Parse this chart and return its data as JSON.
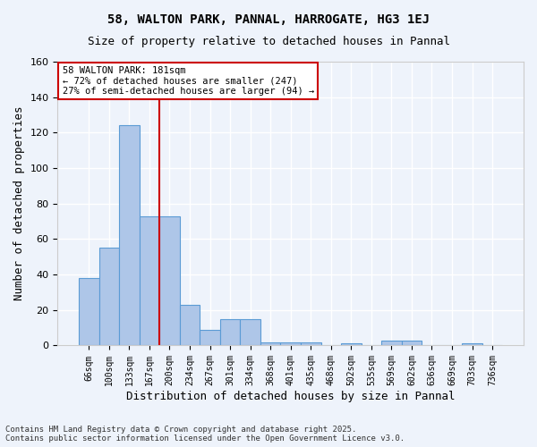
{
  "title1": "58, WALTON PARK, PANNAL, HARROGATE, HG3 1EJ",
  "title2": "Size of property relative to detached houses in Pannal",
  "xlabel": "Distribution of detached houses by size in Pannal",
  "ylabel": "Number of detached properties",
  "bar_values": [
    38,
    55,
    124,
    73,
    73,
    23,
    9,
    15,
    15,
    2,
    2,
    2,
    0,
    1,
    0,
    3,
    3,
    0,
    0,
    1,
    0
  ],
  "categories": [
    "66sqm",
    "100sqm",
    "133sqm",
    "167sqm",
    "200sqm",
    "234sqm",
    "267sqm",
    "301sqm",
    "334sqm",
    "368sqm",
    "401sqm",
    "435sqm",
    "468sqm",
    "502sqm",
    "535sqm",
    "569sqm",
    "602sqm",
    "636sqm",
    "669sqm",
    "703sqm",
    "736sqm"
  ],
  "bar_color": "#aec6e8",
  "bar_edge_color": "#5b9bd5",
  "bg_color": "#eef3fb",
  "grid_color": "#ffffff",
  "vline_x": 3.5,
  "vline_color": "#cc0000",
  "annotation_text": "58 WALTON PARK: 181sqm\n← 72% of detached houses are smaller (247)\n27% of semi-detached houses are larger (94) →",
  "annotation_box_color": "#ffffff",
  "annotation_border_color": "#cc0000",
  "footer": "Contains HM Land Registry data © Crown copyright and database right 2025.\nContains public sector information licensed under the Open Government Licence v3.0.",
  "ylim": [
    0,
    160
  ],
  "yticks": [
    0,
    20,
    40,
    60,
    80,
    100,
    120,
    140,
    160
  ]
}
